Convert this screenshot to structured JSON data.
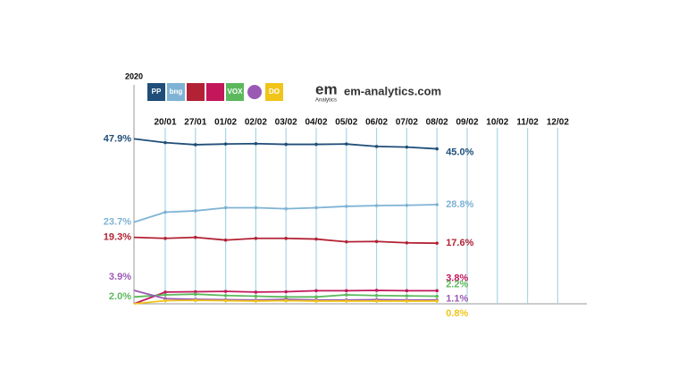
{
  "chart_data": {
    "type": "line",
    "year": "2020",
    "source": "em-analytics.com",
    "logo_main": "em",
    "logo_sub": "Analytics",
    "categories": [
      null,
      "20/01",
      "27/01",
      "01/02",
      "02/02",
      "03/02",
      "04/02",
      "05/02",
      "06/02",
      "07/02",
      "08/02",
      "09/02",
      "10/02",
      "11/02",
      "12/02"
    ],
    "ylim": [
      0,
      48
    ],
    "series": [
      {
        "name": "PP",
        "color": "#1f4e79",
        "values": [
          47.9,
          46.8,
          46.2,
          46.4,
          46.5,
          46.3,
          46.3,
          46.4,
          45.7,
          45.5,
          45.0,
          null,
          null,
          null,
          null
        ],
        "value_labels": [
          "47.9%",
          null,
          null,
          null,
          null,
          null,
          null,
          null,
          null,
          null,
          "45.0%",
          null,
          null,
          null,
          null
        ]
      },
      {
        "name": "bng",
        "color": "#7fb3d5",
        "values": [
          23.7,
          26.6,
          27.0,
          27.9,
          27.9,
          27.6,
          27.9,
          28.3,
          28.5,
          28.6,
          28.8,
          null,
          null,
          null,
          null
        ],
        "value_labels": [
          "23.7%",
          null,
          null,
          null,
          null,
          null,
          null,
          null,
          null,
          null,
          "28.8%",
          null,
          null,
          null,
          null
        ]
      },
      {
        "color": "#b22234",
        "values": [
          19.3,
          19.0,
          19.3,
          18.5,
          19.0,
          19.0,
          18.8,
          18.0,
          18.1,
          17.7,
          17.6,
          null,
          null,
          null,
          null
        ],
        "value_labels": [
          "19.3%",
          null,
          null,
          null,
          null,
          null,
          null,
          null,
          null,
          null,
          "17.6%",
          null,
          null,
          null,
          null
        ]
      },
      {
        "color": "#c2185b",
        "values": [
          0,
          3.4,
          3.5,
          3.6,
          3.4,
          3.5,
          3.8,
          3.8,
          3.9,
          3.8,
          3.8,
          null,
          null,
          null,
          null
        ],
        "value_labels": [
          null,
          null,
          null,
          null,
          null,
          null,
          null,
          null,
          null,
          null,
          "3.8%",
          null,
          null,
          null,
          null
        ]
      },
      {
        "name": "VOX",
        "color": "#5cb85c",
        "values": [
          2.0,
          2.6,
          2.8,
          2.4,
          2.2,
          2.0,
          2.0,
          2.6,
          2.4,
          2.3,
          2.2,
          null,
          null,
          null,
          null
        ],
        "value_labels": [
          "2.0%",
          null,
          null,
          null,
          null,
          null,
          null,
          null,
          null,
          null,
          "2.2%",
          null,
          null,
          null,
          null
        ]
      },
      {
        "color": "#9b59b6",
        "values": [
          3.9,
          1.5,
          1.3,
          1.2,
          1.1,
          1.3,
          1.1,
          1.1,
          1.2,
          1.1,
          1.1,
          null,
          null,
          null,
          null
        ],
        "value_labels": [
          "3.9%",
          null,
          null,
          null,
          null,
          null,
          null,
          null,
          null,
          null,
          "1.1%",
          null,
          null,
          null,
          null
        ]
      },
      {
        "name": "DO",
        "color": "#f0c419",
        "values": [
          0,
          0.9,
          1.0,
          0.9,
          0.8,
          0.9,
          0.8,
          0.8,
          0.8,
          0.8,
          0.8,
          null,
          null,
          null,
          null
        ],
        "value_labels": [
          null,
          null,
          null,
          null,
          null,
          null,
          null,
          null,
          null,
          null,
          "0.8%",
          null,
          null,
          null,
          null
        ]
      }
    ]
  }
}
